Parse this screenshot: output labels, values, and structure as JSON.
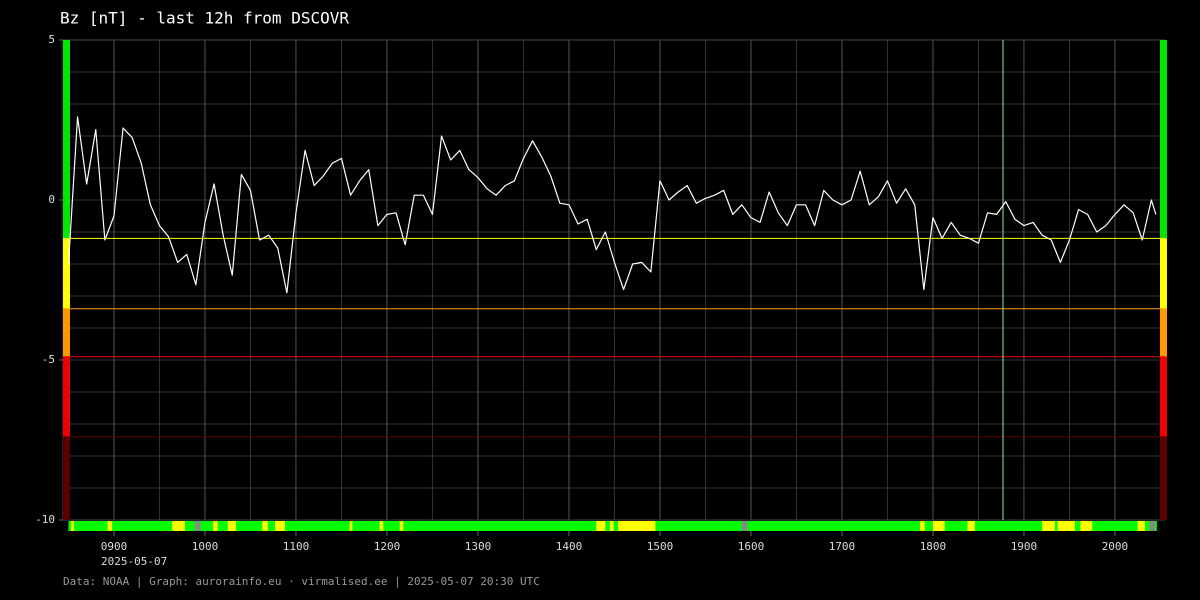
{
  "chart_data": {
    "type": "line",
    "title": "Bz [nT] - last 12h from DSCOVR",
    "date_label": "2025-05-07",
    "footer": "Data: NOAA | Graph: aurorainfo.eu · virmalised.ee | 2025-05-07 20:30 UTC",
    "xlim": [
      8.44,
      20.55
    ],
    "ylim": [
      -10,
      5
    ],
    "yticks": [
      5,
      0,
      -5,
      -10
    ],
    "xticks": [
      {
        "value": 9,
        "label": "0900"
      },
      {
        "value": 10,
        "label": "1000"
      },
      {
        "value": 11,
        "label": "1100"
      },
      {
        "value": 12,
        "label": "1200"
      },
      {
        "value": 13,
        "label": "1300"
      },
      {
        "value": 14,
        "label": "1400"
      },
      {
        "value": 15,
        "label": "1500"
      },
      {
        "value": 16,
        "label": "1600"
      },
      {
        "value": 17,
        "label": "1700"
      },
      {
        "value": 18,
        "label": "1800"
      },
      {
        "value": 19,
        "label": "1900"
      },
      {
        "value": 20,
        "label": "2000"
      }
    ],
    "xgrid": [
      8.5,
      9,
      9.5,
      10,
      10.5,
      11,
      11.5,
      12,
      12.5,
      13,
      13.5,
      14,
      14.5,
      15,
      15.5,
      16,
      16.5,
      17,
      17.5,
      18,
      18.5,
      19,
      19.5,
      20,
      20.5
    ],
    "ygrid": [
      5,
      4,
      3,
      2,
      1,
      0,
      -1,
      -2,
      -3,
      -4,
      -5,
      -6,
      -7,
      -8,
      -9,
      -10
    ],
    "grid": true,
    "bands": [
      {
        "from": 5,
        "to": -1.2,
        "color": "#00e600"
      },
      {
        "from": -1.2,
        "to": -3.4,
        "color": "#ffff00"
      },
      {
        "from": -3.4,
        "to": -4.9,
        "color": "#ff9900"
      },
      {
        "from": -4.9,
        "to": -7.4,
        "color": "#ee0000"
      },
      {
        "from": -7.4,
        "to": -10,
        "color": "#5a0000"
      }
    ],
    "marker_x": 18.77,
    "marker_color": "#9be89b",
    "strip": {
      "from": 8.5,
      "to": 20.46,
      "color": "#00ff00",
      "segments": [
        {
          "from": 8.53,
          "to": 8.56,
          "color": "#ffff00"
        },
        {
          "from": 8.93,
          "to": 8.98,
          "color": "#ffff00"
        },
        {
          "from": 9.64,
          "to": 9.78,
          "color": "#ffff00"
        },
        {
          "from": 9.89,
          "to": 9.95,
          "color": "#888888"
        },
        {
          "from": 10.09,
          "to": 10.14,
          "color": "#ffff00"
        },
        {
          "from": 10.25,
          "to": 10.34,
          "color": "#ffff00"
        },
        {
          "from": 10.63,
          "to": 10.69,
          "color": "#ffff00"
        },
        {
          "from": 10.77,
          "to": 10.88,
          "color": "#ffff00"
        },
        {
          "from": 11.59,
          "to": 11.62,
          "color": "#ffff00"
        },
        {
          "from": 11.92,
          "to": 11.96,
          "color": "#ffff00"
        },
        {
          "from": 12.14,
          "to": 12.18,
          "color": "#ffff00"
        },
        {
          "from": 14.3,
          "to": 14.4,
          "color": "#ffff00"
        },
        {
          "from": 14.45,
          "to": 14.49,
          "color": "#ffff00"
        },
        {
          "from": 14.54,
          "to": 14.95,
          "color": "#ffff00"
        },
        {
          "from": 15.9,
          "to": 15.96,
          "color": "#888888"
        },
        {
          "from": 17.86,
          "to": 17.91,
          "color": "#ffff00"
        },
        {
          "from": 18.0,
          "to": 18.13,
          "color": "#ffff00"
        },
        {
          "from": 18.38,
          "to": 18.46,
          "color": "#ffff00"
        },
        {
          "from": 19.2,
          "to": 19.34,
          "color": "#ffff00"
        },
        {
          "from": 19.37,
          "to": 19.56,
          "color": "#ffff00"
        },
        {
          "from": 19.62,
          "to": 19.75,
          "color": "#ffff00"
        },
        {
          "from": 20.25,
          "to": 20.33,
          "color": "#ffff00"
        },
        {
          "from": 20.38,
          "to": 20.44,
          "color": "#888888"
        }
      ]
    },
    "x": [
      8.5,
      8.6,
      8.7,
      8.8,
      8.9,
      9.0,
      9.1,
      9.2,
      9.3,
      9.4,
      9.5,
      9.6,
      9.7,
      9.8,
      9.9,
      10.0,
      10.1,
      10.2,
      10.3,
      10.4,
      10.5,
      10.6,
      10.7,
      10.8,
      10.9,
      11.0,
      11.1,
      11.2,
      11.3,
      11.4,
      11.5,
      11.6,
      11.7,
      11.8,
      11.9,
      12.0,
      12.1,
      12.2,
      12.3,
      12.4,
      12.5,
      12.6,
      12.7,
      12.8,
      12.9,
      13.0,
      13.1,
      13.2,
      13.3,
      13.4,
      13.5,
      13.6,
      13.7,
      13.8,
      13.9,
      14.0,
      14.1,
      14.2,
      14.3,
      14.4,
      14.5,
      14.6,
      14.7,
      14.8,
      14.9,
      15.0,
      15.1,
      15.2,
      15.3,
      15.4,
      15.5,
      15.6,
      15.7,
      15.8,
      15.9,
      16.0,
      16.1,
      16.2,
      16.3,
      16.4,
      16.5,
      16.6,
      16.7,
      16.8,
      16.9,
      17.0,
      17.1,
      17.2,
      17.3,
      17.4,
      17.5,
      17.6,
      17.7,
      17.8,
      17.9,
      18.0,
      18.1,
      18.2,
      18.3,
      18.4,
      18.5,
      18.6,
      18.7,
      18.8,
      18.9,
      19.0,
      19.1,
      19.2,
      19.3,
      19.4,
      19.5,
      19.6,
      19.7,
      19.8,
      19.9,
      20.0,
      20.1,
      20.2,
      20.3,
      20.4,
      20.45
    ],
    "series": [
      {
        "name": "Bz",
        "color": "#ffffff",
        "values": [
          -2.0,
          2.6,
          0.5,
          2.2,
          -1.25,
          -0.5,
          2.25,
          1.95,
          1.15,
          -0.15,
          -0.8,
          -1.15,
          -1.95,
          -1.7,
          -2.65,
          -0.7,
          0.5,
          -1.1,
          -2.35,
          0.8,
          0.3,
          -1.25,
          -1.1,
          -1.5,
          -2.9,
          -0.4,
          1.55,
          0.45,
          0.75,
          1.15,
          1.3,
          0.15,
          0.6,
          0.95,
          -0.8,
          -0.45,
          -0.4,
          -1.4,
          0.15,
          0.15,
          -0.45,
          2.0,
          1.25,
          1.55,
          0.95,
          0.7,
          0.35,
          0.15,
          0.45,
          0.6,
          1.3,
          1.85,
          1.35,
          0.75,
          -0.1,
          -0.15,
          -0.75,
          -0.6,
          -1.55,
          -1.0,
          -1.95,
          -2.8,
          -2.0,
          -1.95,
          -2.25,
          0.6,
          0,
          0.25,
          0.45,
          -0.1,
          0.05,
          0.15,
          0.3,
          -0.45,
          -0.15,
          -0.55,
          -0.7,
          0.25,
          -0.4,
          -0.8,
          -0.15,
          -0.15,
          -0.8,
          0.3,
          0,
          -0.15,
          0,
          0.9,
          -0.15,
          0.1,
          0.6,
          -0.1,
          0.35,
          -0.15,
          -2.8,
          -0.55,
          -1.2,
          -0.7,
          -1.1,
          -1.2,
          -1.35,
          -0.4,
          -0.45,
          -0.05,
          -0.6,
          -0.8,
          -0.7,
          -1.1,
          -1.25,
          -1.95,
          -1.25,
          -0.3,
          -0.45,
          -1.0,
          -0.8,
          -0.45,
          -0.15,
          -0.4,
          -1.25,
          0,
          -0.45
        ]
      }
    ]
  }
}
